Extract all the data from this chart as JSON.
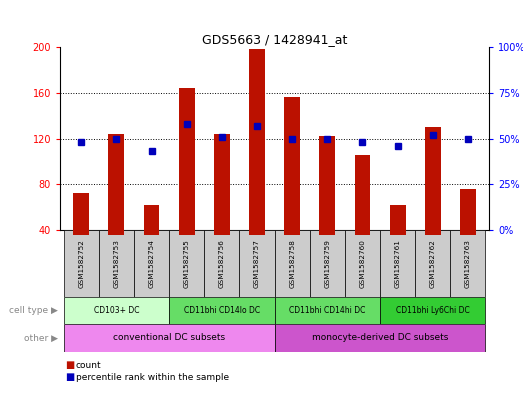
{
  "title": "GDS5663 / 1428941_at",
  "samples": [
    "GSM1582752",
    "GSM1582753",
    "GSM1582754",
    "GSM1582755",
    "GSM1582756",
    "GSM1582757",
    "GSM1582758",
    "GSM1582759",
    "GSM1582760",
    "GSM1582761",
    "GSM1582762",
    "GSM1582763"
  ],
  "counts": [
    72,
    124,
    62,
    164,
    124,
    198,
    156,
    122,
    106,
    62,
    130,
    76
  ],
  "percentiles": [
    48,
    50,
    43,
    58,
    51,
    57,
    50,
    50,
    48,
    46,
    52,
    50
  ],
  "y_min": 40,
  "y_max": 200,
  "y_ticks": [
    40,
    80,
    120,
    160,
    200
  ],
  "y2_ticks": [
    0,
    25,
    50,
    75,
    100
  ],
  "cell_groups": [
    {
      "label": "CD103+ DC",
      "start": 0,
      "end": 2,
      "color": "#ccffcc"
    },
    {
      "label": "CD11bhi CD14lo DC",
      "start": 3,
      "end": 5,
      "color": "#66dd66"
    },
    {
      "label": "CD11bhi CD14hi DC",
      "start": 6,
      "end": 8,
      "color": "#66dd66"
    },
    {
      "label": "CD11bhi Ly6Chi DC",
      "start": 9,
      "end": 11,
      "color": "#33cc33"
    }
  ],
  "other_groups": [
    {
      "label": "conventional DC subsets",
      "start": 0,
      "end": 5,
      "color": "#ee88ee"
    },
    {
      "label": "monocyte-derived DC subsets",
      "start": 6,
      "end": 11,
      "color": "#cc55cc"
    }
  ],
  "bar_color": "#bb1100",
  "dot_color": "#0000bb",
  "label_bg": "#cccccc",
  "grid_color": "black",
  "title_fontsize": 9,
  "tick_fontsize": 7,
  "bar_width": 0.45
}
